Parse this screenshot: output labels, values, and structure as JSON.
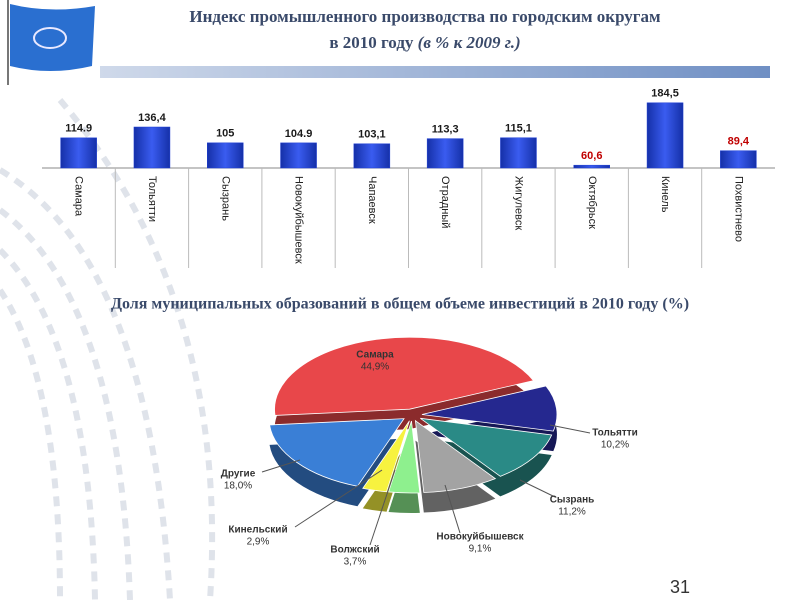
{
  "chart_data": [
    {
      "type": "bar",
      "title": "Индекс промышленного производства по городским округам",
      "subtitle": "в 2010 году",
      "subtitle_note": "(в % к 2009 г.)",
      "categories": [
        "Самара",
        "Тольятти",
        "Сызрань",
        "Новокуйбышевск",
        "Чапаевск",
        "Отрадный",
        "Жигулевск",
        "Октябрьск",
        "Кинель",
        "Похвистнево"
      ],
      "values": [
        114.9,
        136.4,
        105,
        104.9,
        103.1,
        113.3,
        115.1,
        60.6,
        184.5,
        89.4
      ],
      "value_labels": [
        "114.9",
        "136,4",
        "105",
        "104.9",
        "103,1",
        "113,3",
        "115,1",
        "60,6",
        "184,5",
        "89,4"
      ],
      "value_label_colors": [
        "#1a1a1a",
        "#1a1a1a",
        "#1a1a1a",
        "#1a1a1a",
        "#1a1a1a",
        "#1a1a1a",
        "#1a1a1a",
        "#c00000",
        "#1a1a1a",
        "#c00000"
      ],
      "color": "#1f3fd6",
      "ylim": [
        55,
        190
      ]
    },
    {
      "type": "pie",
      "title": "Доля муниципальных образований в общем объеме инвестиций в 2010 году (%)",
      "categories": [
        "Самара",
        "Тольятти",
        "Сызрань",
        "Новокуйбышевск",
        "Волжский",
        "Кинельский",
        "Другие"
      ],
      "values": [
        44.9,
        10.2,
        11.2,
        9.1,
        3.7,
        2.9,
        18.0
      ],
      "value_labels": [
        "44,9%",
        "10,2%",
        "11,2%",
        "9,1%",
        "3,7%",
        "2,9%",
        "18,0%"
      ],
      "colors": [
        "#e8474a",
        "#25288f",
        "#2a8a86",
        "#a3a3a3",
        "#8ef08e",
        "#f7f23f",
        "#3a7fd6"
      ]
    }
  ],
  "page_number": "31"
}
